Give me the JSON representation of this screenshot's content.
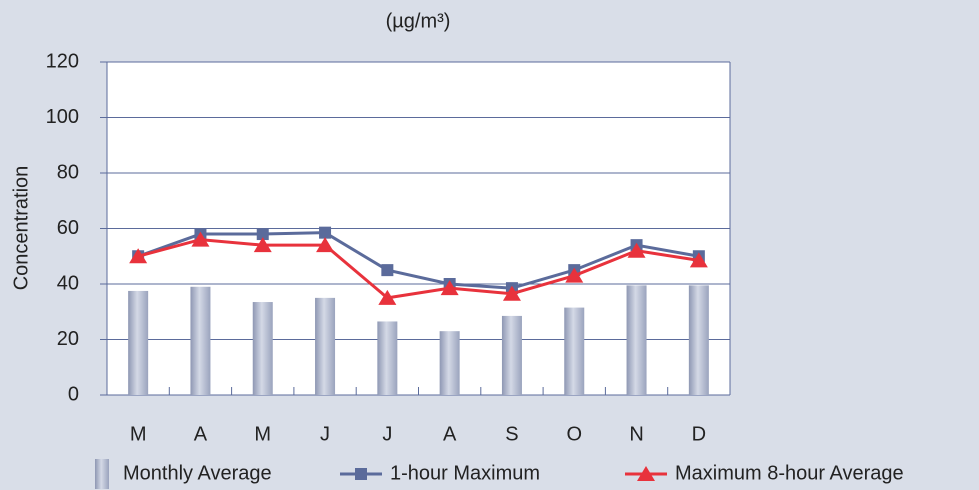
{
  "chart_data": {
    "type": "bar-line",
    "unit": "(µg/m³)",
    "y_label": "Concentration",
    "categories": [
      "M",
      "A",
      "M",
      "J",
      "J",
      "A",
      "S",
      "O",
      "N",
      "D"
    ],
    "series": [
      {
        "name": "Monthly Average",
        "kind": "bar",
        "color": "#a9b2c9",
        "values": [
          37.5,
          39,
          33.5,
          35,
          26.5,
          23,
          28.5,
          31.5,
          39.5,
          39.5
        ]
      },
      {
        "name": "1-hour Maximum",
        "kind": "line",
        "marker": "square",
        "color": "#5b6b9b",
        "values": [
          50,
          58,
          58,
          58.5,
          45,
          40,
          38.5,
          45,
          54,
          50
        ]
      },
      {
        "name": "Maximum 8-hour Average",
        "kind": "line",
        "marker": "triangle",
        "color": "#e8323c",
        "values": [
          50,
          56,
          54,
          54,
          35,
          38.5,
          36.5,
          43,
          52,
          48.5
        ]
      }
    ],
    "ylim": [
      0,
      120
    ],
    "yticks": [
      0,
      20,
      40,
      60,
      80,
      100,
      120
    ],
    "grid": true
  }
}
